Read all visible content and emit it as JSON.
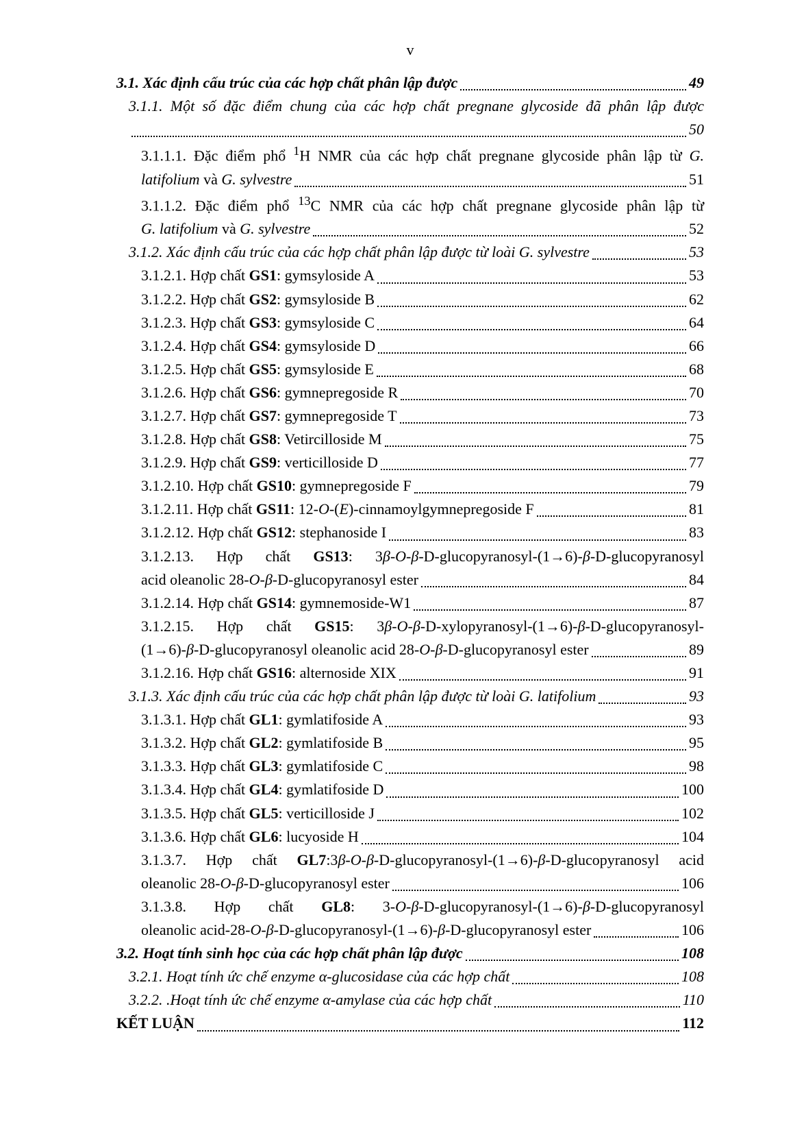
{
  "page_label": "v",
  "font": {
    "family": "Times New Roman",
    "body_size_pt": 13
  },
  "colors": {
    "text": "#000000",
    "background": "#ffffff",
    "leader": "#000000"
  },
  "toc": [
    {
      "id": "e1",
      "style": "bold-italic",
      "indent": 0,
      "html": "3.1. Xác định cấu trúc của các hợp chất phân lập được",
      "page": "49"
    },
    {
      "id": "e2",
      "style": "italic",
      "indent": 1,
      "wrap": true,
      "line1_html": "3.1.1. Một số đặc điểm chung của các hợp chất pregnane glycoside đã phân lập được",
      "line2_html": "",
      "page": "50"
    },
    {
      "id": "e3",
      "style": "plain",
      "indent": 2,
      "wrap": true,
      "line1_html": "3.1.1.1. Đặc điểm phổ <sup>1</sup>H NMR của các hợp chất pregnane glycoside phân lập từ <i>G.</i>",
      "line2_html": "<i>latifolium</i> và <i>G. sylvestre</i>",
      "page": "51"
    },
    {
      "id": "e4",
      "style": "plain",
      "indent": 2,
      "wrap": true,
      "line1_html": "3.1.1.2. Đặc điểm phổ <sup>13</sup>C NMR của các hợp chất pregnane glycoside phân lập từ",
      "line2_html": "<i>G. latifolium</i> và <i>G. sylvestre</i>",
      "page": "52"
    },
    {
      "id": "e5",
      "style": "italic",
      "indent": 1,
      "html": "3.1.2. Xác định cấu trúc của các hợp chất phân lập được từ loài G. sylvestre",
      "page": "53"
    },
    {
      "id": "e6",
      "style": "plain",
      "indent": 2,
      "html": "3.1.2.1. Hợp chất <b>GS1</b>: gymsyloside A",
      "page": "53"
    },
    {
      "id": "e7",
      "style": "plain",
      "indent": 2,
      "html": "3.1.2.2. Hợp chất <b>GS2</b>: gymsyloside B",
      "page": "62"
    },
    {
      "id": "e8",
      "style": "plain",
      "indent": 2,
      "html": "3.1.2.3. Hợp chất <b>GS3</b>: gymsyloside C",
      "page": "64"
    },
    {
      "id": "e9",
      "style": "plain",
      "indent": 2,
      "html": "3.1.2.4. Hợp chất <b>GS4</b>: gymsyloside D",
      "page": "66"
    },
    {
      "id": "e10",
      "style": "plain",
      "indent": 2,
      "html": "3.1.2.5. Hợp chất <b>GS5</b>: gymsyloside E",
      "page": "68"
    },
    {
      "id": "e11",
      "style": "plain",
      "indent": 2,
      "html": "3.1.2.6. Hợp chất <b>GS6</b>: gymnepregoside R",
      "page": "70"
    },
    {
      "id": "e12",
      "style": "plain",
      "indent": 2,
      "html": "3.1.2.7. Hợp chất <b>GS7</b>: gymnepregoside T",
      "page": "73"
    },
    {
      "id": "e13",
      "style": "plain",
      "indent": 2,
      "html": "3.1.2.8. Hợp chất <b>GS8</b>: Vetircilloside M",
      "page": "75"
    },
    {
      "id": "e14",
      "style": "plain",
      "indent": 2,
      "html": "3.1.2.9. Hợp chất <b>GS9</b>: verticilloside D",
      "page": "77"
    },
    {
      "id": "e15",
      "style": "plain",
      "indent": 2,
      "html": "3.1.2.10. Hợp chất <b>GS10</b>: gymnepregoside F",
      "page": "79"
    },
    {
      "id": "e16",
      "style": "plain",
      "indent": 2,
      "html": "3.1.2.11. Hợp chất <b>GS11</b>: 12-<i>O</i>-(<i>E</i>)-cinnamoylgymnepregoside F",
      "page": "81"
    },
    {
      "id": "e17",
      "style": "plain",
      "indent": 2,
      "html": "3.1.2.12. Hợp chất <b>GS12</b>: stephanoside I",
      "page": "83"
    },
    {
      "id": "e18",
      "style": "plain",
      "indent": 2,
      "wrap": true,
      "line1_html": "3.1.2.13.&nbsp;&nbsp;Hợp&nbsp;&nbsp;chất&nbsp;&nbsp;<b>GS13</b>:&nbsp;&nbsp;3<i>β</i>-<i>O</i>-<i>β</i>-D-glucopyranosyl-(1→6)-<i>β</i>-D-glucopyranosyl",
      "line2_html": "acid oleanolic 28-<i>O</i>-<i>β</i>-D-glucopyranosyl ester",
      "page": "84"
    },
    {
      "id": "e19",
      "style": "plain",
      "indent": 2,
      "html": "3.1.2.14. Hợp chất <b>GS14</b>: gymnemoside-W1",
      "page": "87"
    },
    {
      "id": "e20",
      "style": "plain",
      "indent": 2,
      "wrap": true,
      "line1_html": "3.1.2.15.&nbsp;&nbsp;Hợp&nbsp;&nbsp;chất&nbsp;&nbsp;<b>GS15</b>:&nbsp;&nbsp;3<i>β</i>-<i>O</i>-<i>β</i>-D-xylopyranosyl-(1→6)-<i>β</i>-D-glucopyranosyl-",
      "line2_html": "(1→6)-<i>β</i>-D-glucopyranosyl oleanolic acid 28-<i>O</i>-<i>β</i>-D-glucopyranosyl ester",
      "page": "89"
    },
    {
      "id": "e21",
      "style": "plain",
      "indent": 2,
      "html": "3.1.2.16. Hợp chất <b>GS16</b>: alternoside XIX",
      "page": "91"
    },
    {
      "id": "e22",
      "style": "italic",
      "indent": 1,
      "html": "3.1.3. Xác định cấu trúc của các hợp chất phân lập được từ loài G. latifolium",
      "page": "93"
    },
    {
      "id": "e23",
      "style": "plain",
      "indent": 2,
      "html": "3.1.3.1. Hợp chất <b>GL1</b>: gymlatifoside A",
      "page": "93"
    },
    {
      "id": "e24",
      "style": "plain",
      "indent": 2,
      "html": "3.1.3.2. Hợp chất <b>GL2</b>: gymlatifoside B",
      "page": "95"
    },
    {
      "id": "e25",
      "style": "plain",
      "indent": 2,
      "html": "3.1.3.3. Hợp chất <b>GL3</b>: gymlatifoside C",
      "page": "98"
    },
    {
      "id": "e26",
      "style": "plain",
      "indent": 2,
      "html": "3.1.3.4. Hợp chất <b>GL4</b>: gymlatifoside D",
      "page": "100"
    },
    {
      "id": "e27",
      "style": "plain",
      "indent": 2,
      "html": "3.1.3.5. Hợp chất <b>GL5</b>: verticilloside J",
      "page": "102"
    },
    {
      "id": "e28",
      "style": "plain",
      "indent": 2,
      "html": "3.1.3.6. Hợp chất <b>GL6</b>: lucyoside H",
      "page": "104"
    },
    {
      "id": "e29",
      "style": "plain",
      "indent": 2,
      "wrap": true,
      "line1_html": "3.1.3.7. Hợp chất <b>GL7</b>:3<i>β</i>-<i>O</i>-<i>β</i>-D-glucopyranosyl-(1→6)-<i>β</i>-D-glucopyranosyl acid",
      "line2_html": "oleanolic 28-<i>O</i>-<i>β</i>-D-glucopyranosyl ester",
      "page": "106"
    },
    {
      "id": "e30",
      "style": "plain",
      "indent": 2,
      "wrap": true,
      "line1_html": "3.1.3.8.&nbsp;&nbsp;Hợp&nbsp;&nbsp;chất&nbsp;&nbsp;<b>GL8</b>:&nbsp;&nbsp;3-<i>O</i>-<i>β</i>-D-glucopyranosyl-(1→6)-<i>β</i>-D-glucopyranosyl",
      "line2_html": "oleanolic acid-28-<i>O</i>-<i>β</i>-D-glucopyranosyl-(1→6)-<i>β</i>-D-glucopyranosyl ester",
      "page": "106"
    },
    {
      "id": "e31",
      "style": "bold-italic",
      "indent": 0,
      "html": "3.2. Hoạt tính sinh học của các hợp chất phân lập được",
      "page": "108"
    },
    {
      "id": "e32",
      "style": "italic",
      "indent": 1,
      "html": "3.2.1. Hoạt tính ức chế enzyme α-glucosidase của các hợp chất",
      "page": "108"
    },
    {
      "id": "e33",
      "style": "italic",
      "indent": 1,
      "html": "3.2.2. .Hoạt tính ức chế enzyme α-amylase của các hợp chất",
      "page": "110"
    },
    {
      "id": "e34",
      "style": "bold",
      "indent": -1,
      "html": "KẾT LUẬN",
      "page": "112"
    }
  ]
}
